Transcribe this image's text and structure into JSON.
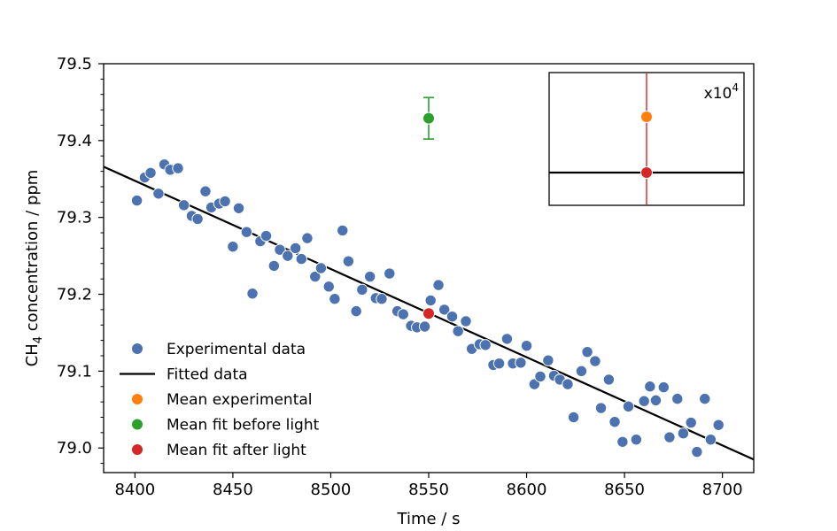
{
  "chart_data": {
    "type": "scatter",
    "xlabel": "Time / s",
    "ylabel_prefix": "CH",
    "ylabel_sub": "4",
    "ylabel_suffix": " concentration / ppm",
    "xlim": [
      8384,
      8716
    ],
    "ylim": [
      78.968,
      79.5
    ],
    "x_ticks": [
      8400,
      8450,
      8500,
      8550,
      8600,
      8650,
      8700
    ],
    "y_ticks": [
      79.0,
      79.1,
      79.2,
      79.3,
      79.4,
      79.5
    ],
    "y_minor_step": 0.02,
    "colors": {
      "experimental": "#4c72b0",
      "fit": "#000000",
      "mean_experimental": "#ff7f0e",
      "mean_before": "#2ca02c",
      "mean_after": "#d62728"
    },
    "experimental": {
      "x": [
        8401,
        8405,
        8408,
        8412,
        8415,
        8418,
        8422,
        8425,
        8429,
        8432,
        8436,
        8439,
        8443,
        8446,
        8450,
        8453,
        8457,
        8460,
        8464,
        8467,
        8471,
        8474,
        8478,
        8482,
        8485,
        8488,
        8492,
        8495,
        8499,
        8502,
        8506,
        8509,
        8513,
        8516,
        8520,
        8523,
        8526,
        8530,
        8534,
        8537,
        8541,
        8544,
        8548,
        8551,
        8555,
        8558,
        8562,
        8565,
        8569,
        8572,
        8576,
        8579,
        8583,
        8586,
        8590,
        8593,
        8597,
        8600,
        8604,
        8607,
        8611,
        8614,
        8617,
        8621,
        8624,
        8628,
        8631,
        8635,
        8638,
        8642,
        8645,
        8649,
        8652,
        8656,
        8660,
        8663,
        8666,
        8670,
        8673,
        8677,
        8680,
        8684,
        8687,
        8691,
        8694,
        8698
      ],
      "y": [
        79.322,
        79.352,
        79.358,
        79.331,
        79.369,
        79.362,
        79.364,
        79.316,
        79.302,
        79.298,
        79.334,
        79.313,
        79.318,
        79.321,
        79.262,
        79.312,
        79.281,
        79.201,
        79.269,
        79.276,
        79.237,
        79.258,
        79.25,
        79.26,
        79.246,
        79.273,
        79.223,
        79.234,
        79.21,
        79.194,
        79.283,
        79.243,
        79.178,
        79.206,
        79.223,
        79.195,
        79.194,
        79.227,
        79.178,
        79.174,
        79.159,
        79.157,
        79.158,
        79.192,
        79.212,
        79.18,
        79.171,
        79.152,
        79.165,
        79.129,
        79.135,
        79.134,
        79.108,
        79.11,
        79.142,
        79.11,
        79.111,
        79.133,
        79.083,
        79.093,
        79.114,
        79.094,
        79.089,
        79.083,
        79.04,
        79.1,
        79.125,
        79.113,
        79.052,
        79.089,
        79.034,
        79.008,
        79.054,
        79.011,
        79.061,
        79.08,
        79.062,
        79.079,
        79.014,
        79.064,
        79.019,
        79.033,
        78.995,
        79.064,
        79.011,
        79.03
      ]
    },
    "fit_line": {
      "x": [
        8384,
        8716
      ],
      "y": [
        79.366,
        78.985
      ]
    },
    "mean_fit_before": {
      "x": 8550,
      "y": 79.429,
      "err": 0.027
    },
    "mean_fit_after": {
      "x": 8550,
      "y": 79.175
    },
    "legend": {
      "placement": "lower-left",
      "items": [
        {
          "label": "Experimental data",
          "marker": "dot",
          "color_key": "experimental"
        },
        {
          "label": "Fitted data",
          "marker": "line",
          "color_key": "fit"
        },
        {
          "label": "Mean experimental",
          "marker": "dot",
          "color_key": "mean_experimental"
        },
        {
          "label": "Mean fit before light",
          "marker": "dot",
          "color_key": "mean_before"
        },
        {
          "label": "Mean fit after light",
          "marker": "dot",
          "color_key": "mean_after"
        }
      ]
    },
    "inset": {
      "scale_label_base": "x10",
      "scale_label_exp": "4",
      "placement": "top-right"
    }
  }
}
